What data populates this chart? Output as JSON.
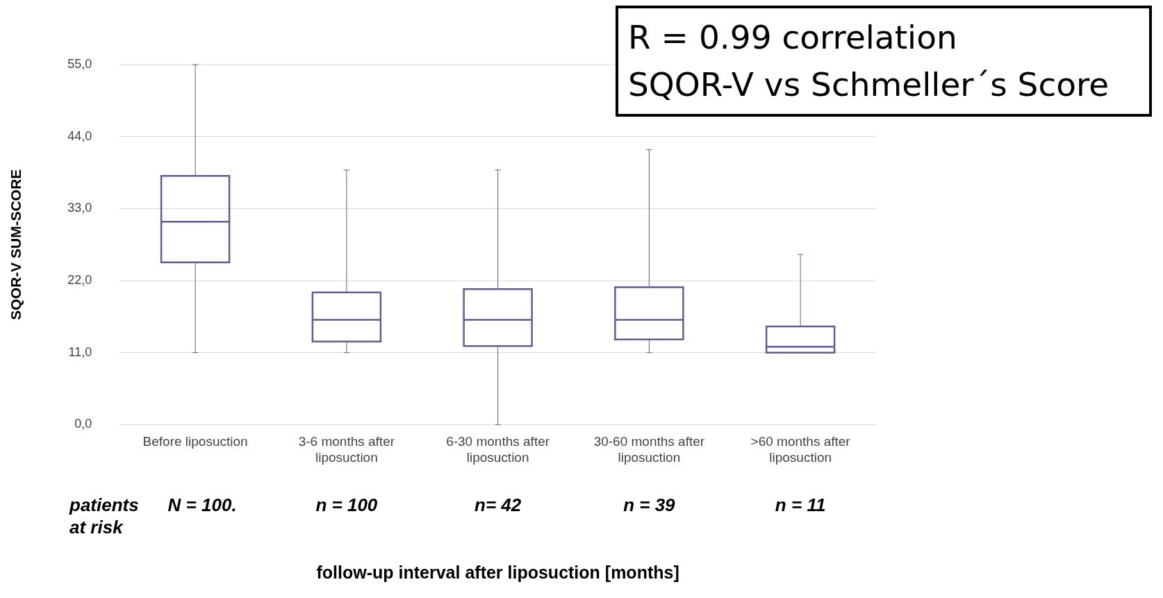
{
  "chart_data": {
    "type": "box",
    "ylabel": "SQOR-V SUM-SCORE",
    "categories": [
      "Before liposuction",
      "3-6 months after liposuction",
      "6-30 months after liposuction",
      "30-60 months after liposuction",
      ">60 months after liposuction"
    ],
    "color": "#5d5d9e",
    "boxes": [
      {
        "low": 11,
        "q1": 24.8,
        "median": 31,
        "q3": 38,
        "high": 55
      },
      {
        "low": 11,
        "q1": 12.7,
        "median": 16,
        "q3": 20.2,
        "high": 38.9
      },
      {
        "low": 0,
        "q1": 12,
        "median": 16,
        "q3": 20.7,
        "high": 38.9
      },
      {
        "low": 11,
        "q1": 13,
        "median": 16,
        "q3": 21,
        "high": 42
      },
      {
        "low": 11,
        "q1": 11,
        "median": 11.9,
        "q3": 15,
        "high": 26
      }
    ],
    "ylim": [
      0,
      55
    ],
    "yticks": [
      {
        "value": 0,
        "label": "0,0"
      },
      {
        "value": 11,
        "label": "11,0"
      },
      {
        "value": 22,
        "label": "22,0"
      },
      {
        "value": 33,
        "label": "33,0"
      },
      {
        "value": 44,
        "label": "44,0"
      },
      {
        "value": 55,
        "label": "55,0"
      }
    ],
    "grid": "y",
    "legend": false,
    "annotations": [
      "R = 0.99  correlation",
      "SQOR-V vs Schmeller´s Score",
      "patients at risk",
      "N = 100.",
      "n = 100",
      "n= 42",
      "n = 39",
      "n = 11",
      "follow-up interval after liposuction [months]"
    ]
  }
}
